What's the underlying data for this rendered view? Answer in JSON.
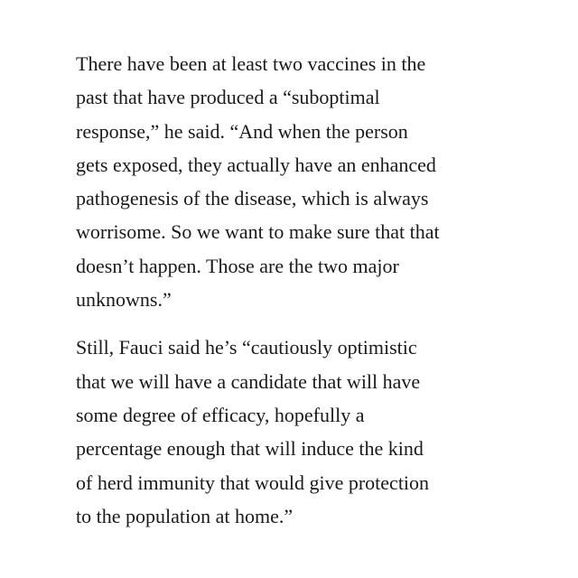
{
  "article": {
    "paragraphs": [
      {
        "lines": [
          "There have been at least two vaccines in the",
          "past that have produced a “suboptimal",
          "response,” he said. “And when the person",
          "gets exposed, they actually have an enhanced",
          "pathogenesis of the disease, which is always",
          "worrisome. So we want to make sure that that",
          "doesn’t happen. Those are the two major",
          "unknowns.”"
        ]
      },
      {
        "lines": [
          "Still, Fauci said he’s “cautiously optimistic",
          "that we will have a candidate that will have",
          "some degree of efficacy, hopefully a",
          "percentage enough that will induce the kind",
          "of herd immunity that would give protection",
          "to the population at home.”"
        ]
      }
    ]
  }
}
